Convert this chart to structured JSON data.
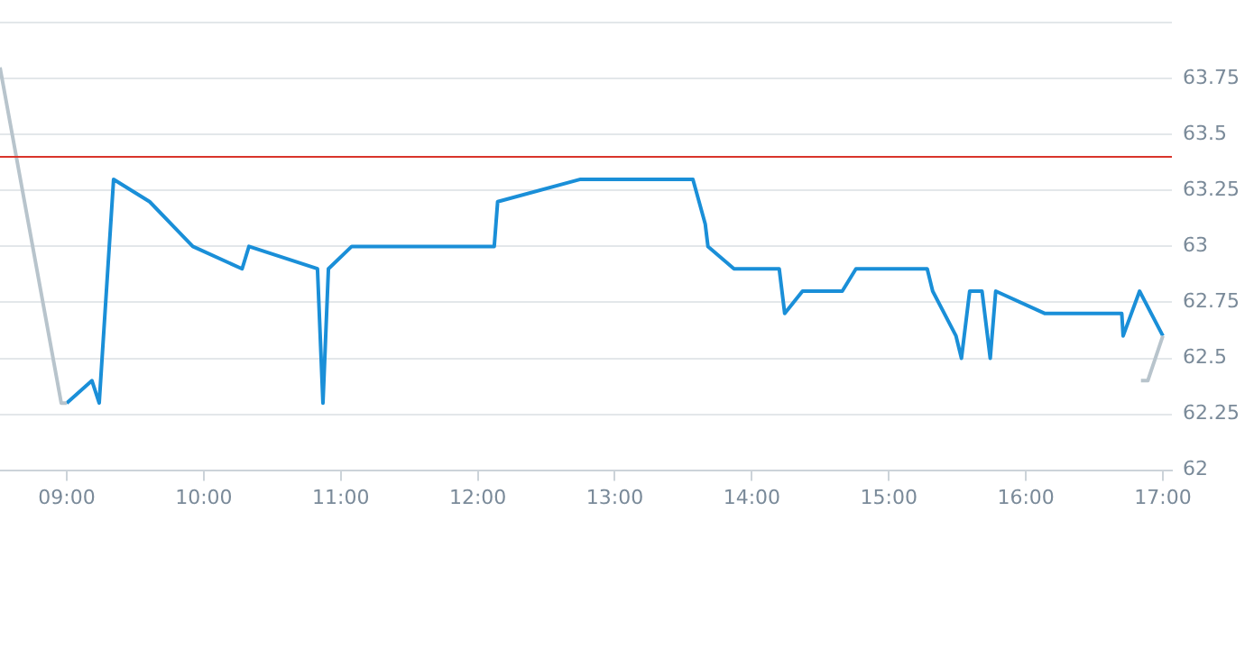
{
  "chart_data": {
    "type": "line",
    "xlim": [
      8.513,
      17.066
    ],
    "ylim": [
      62,
      64
    ],
    "xticks": [
      {
        "value": 9,
        "label": "09:00"
      },
      {
        "value": 10,
        "label": "10:00"
      },
      {
        "value": 11,
        "label": "11:00"
      },
      {
        "value": 12,
        "label": "12:00"
      },
      {
        "value": 13,
        "label": "13:00"
      },
      {
        "value": 14,
        "label": "14:00"
      },
      {
        "value": 15,
        "label": "15:00"
      },
      {
        "value": 16,
        "label": "16:00"
      },
      {
        "value": 17,
        "label": "17:00"
      }
    ],
    "yticks": [
      62,
      62.25,
      62.5,
      62.75,
      63,
      63.25,
      63.5,
      63.75,
      {
        "value": 64,
        "label": null
      }
    ],
    "grid": "y",
    "legend": false,
    "marker": "none",
    "line_style": "solid",
    "ref_lines": [
      {
        "axis": "y",
        "value": 63.4,
        "color": "#d9342b"
      }
    ],
    "series": [
      {
        "color": "#b8c4cc",
        "x": [
          8.513,
          8.96,
          9.0
        ],
        "values": [
          63.8,
          62.3,
          62.3
        ]
      },
      {
        "color": "#b8c4cc",
        "x": [
          16.84,
          16.89,
          17.0
        ],
        "values": [
          62.4,
          62.4,
          62.6
        ]
      },
      {
        "color": "#1a8fd8",
        "x": [
          9.0,
          9.184,
          9.237,
          9.342,
          9.605,
          9.92,
          10.28,
          10.33,
          10.83,
          10.87,
          10.91,
          11.08,
          12.12,
          12.145,
          12.75,
          13.57,
          13.66,
          13.68,
          13.87,
          14.2,
          14.24,
          14.37,
          14.66,
          14.76,
          15.28,
          15.32,
          15.49,
          15.53,
          15.59,
          15.68,
          15.74,
          15.78,
          16.14,
          16.7,
          16.71,
          16.83,
          17.0
        ],
        "values": [
          62.3,
          62.4,
          62.3,
          63.3,
          63.2,
          63.0,
          62.9,
          63.0,
          62.9,
          62.3,
          62.9,
          63.0,
          63.0,
          63.2,
          63.3,
          63.3,
          63.1,
          63.0,
          62.9,
          62.9,
          62.7,
          62.8,
          62.8,
          62.9,
          62.9,
          62.8,
          62.6,
          62.5,
          62.8,
          62.8,
          62.5,
          62.8,
          62.7,
          62.7,
          62.6,
          62.8,
          62.6
        ]
      }
    ]
  }
}
